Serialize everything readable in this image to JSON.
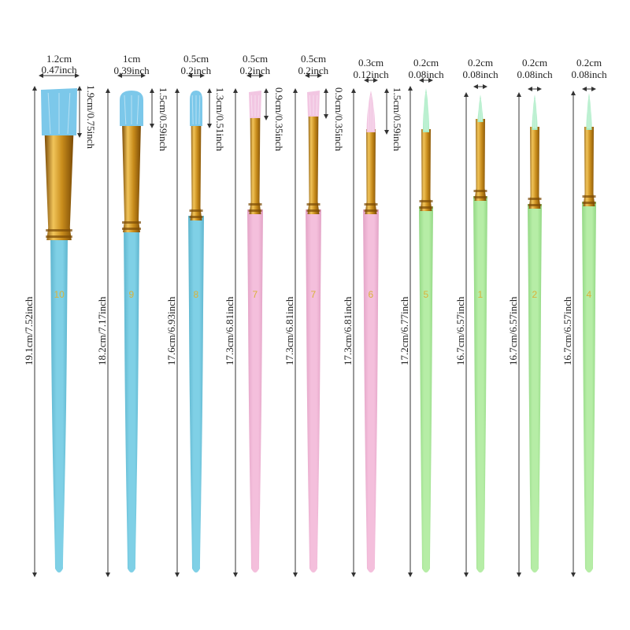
{
  "colors": {
    "blue": "#7fd0e6",
    "blue_dark": "#5fb6cf",
    "pink": "#f4bfdc",
    "pink_dark": "#e3a3c6",
    "green": "#b6eda6",
    "green_dark": "#93d884",
    "gold": "#c98d1c",
    "gold_dark": "#7a4a05",
    "gold_light": "#f1c45a",
    "number": "#d9b23a",
    "arrow": "#333333"
  },
  "brushes": [
    {
      "number": "10",
      "color": "blue",
      "head": "flat",
      "width_cm": "1.2cm",
      "width_in": "0.47inch",
      "head_len": "1.9cm/0.75inch",
      "total": "19.1cm/7.52inch"
    },
    {
      "number": "9",
      "color": "blue",
      "head": "filbert",
      "width_cm": "1cm",
      "width_in": "0.39inch",
      "head_len": "1.5cm/0.59inch",
      "total": "18.2cm/7.17inch"
    },
    {
      "number": "8",
      "color": "blue",
      "head": "filbert",
      "width_cm": "0.5cm",
      "width_in": "0.2inch",
      "head_len": "1.3cm/0.51inch",
      "total": "17.6cm/6.93inch"
    },
    {
      "number": "7",
      "color": "pink",
      "head": "flat",
      "width_cm": "0.5cm",
      "width_in": "0.2inch",
      "head_len": "0.9cm/0.35inch",
      "total": "17.3cm/6.81inch"
    },
    {
      "number": "7",
      "color": "pink",
      "head": "flat",
      "width_cm": "0.5cm",
      "width_in": "0.2inch",
      "head_len": "0.9cm/0.35inch",
      "total": "17.3cm/6.81inch"
    },
    {
      "number": "6",
      "color": "pink",
      "head": "round",
      "width_cm": "0.3cm",
      "width_in": "0.12inch",
      "head_len": "1.5cm/0.59inch",
      "total": "17.3cm/6.81inch"
    },
    {
      "number": "5",
      "color": "green",
      "head": "round",
      "width_cm": "0.2cm",
      "width_in": "0.08inch",
      "head_len": "",
      "total": "17.2cm/6.77inch"
    },
    {
      "number": "1",
      "color": "green",
      "head": "round",
      "width_cm": "0.2cm",
      "width_in": "0.08inch",
      "head_len": "",
      "total": "16.7cm/6.57inch"
    },
    {
      "number": "2",
      "color": "green",
      "head": "round",
      "width_cm": "0.2cm",
      "width_in": "0.08inch",
      "head_len": "",
      "total": "16.7cm/6.57inch"
    },
    {
      "number": "4",
      "color": "green",
      "head": "round",
      "width_cm": "0.2cm",
      "width_in": "0.08inch",
      "head_len": "",
      "total": "16.7cm/6.57inch"
    }
  ]
}
